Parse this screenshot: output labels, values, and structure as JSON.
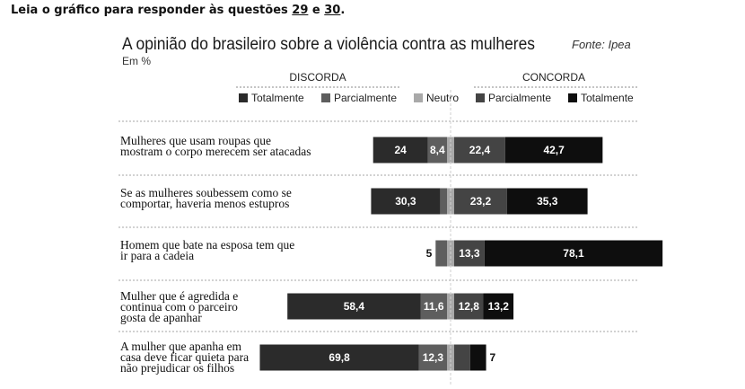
{
  "instruction": {
    "prefix": "Leia o gráfico para responder às questões ",
    "q1": "29",
    "conj": " e ",
    "q2": "30",
    "suffix": "."
  },
  "chart_data": {
    "type": "bar",
    "orientation": "horizontal",
    "stacked": "diverging",
    "title": "A opinião do brasileiro sobre a violência contra as mulheres",
    "source": "Fonte: Ipea",
    "unit": "Em %",
    "group_headers": {
      "disagree": "DISCORDA",
      "agree": "CONCORDA"
    },
    "legend": [
      {
        "label": "Totalmente",
        "color": "#2b2b2b",
        "side": "disagree"
      },
      {
        "label": "Parcialmente",
        "color": "#5e5e5e",
        "side": "disagree"
      },
      {
        "label": "Neutro",
        "color": "#a9a9a9",
        "side": "neutral"
      },
      {
        "label": "Parcialmente",
        "color": "#444444",
        "side": "agree"
      },
      {
        "label": "Totalmente",
        "color": "#0e0e0e",
        "side": "agree"
      }
    ],
    "categories": [
      "Mulheres que usam roupas que mostram o corpo merecem ser atacadas",
      "Se as mulheres soubessem como se comportar, haveria menos estupros",
      "Homem que bate na esposa tem que ir para a cadeia",
      "Mulher que é agredida e continua com o parceiro gosta de apanhar",
      "A mulher que apanha em casa deve ficar quieta para não prejudicar os filhos"
    ],
    "category_lines": [
      [
        "Mulheres que usam roupas que",
        "mostram o corpo merecem ser atacadas"
      ],
      [
        "Se as mulheres soubessem como se",
        "comportar, haveria menos estupros"
      ],
      [
        "Homem que bate na esposa tem que",
        "ir para a cadeia"
      ],
      [
        "Mulher que é agredida e",
        "continua com o parceiro",
        "gosta de apanhar"
      ],
      [
        "A mulher que apanha em",
        "casa deve ficar quieta para",
        "não prejudicar os filhos"
      ]
    ],
    "series": [
      {
        "name": "Discorda totalmente",
        "values": [
          24,
          30.3,
          null,
          58.4,
          69.8
        ],
        "labels": [
          "24",
          "30,3",
          "",
          "58,4",
          "69,8"
        ]
      },
      {
        "name": "Discorda parcialmente",
        "values": [
          8.4,
          3,
          5,
          11.6,
          12.3
        ],
        "labels": [
          "8,4",
          "",
          "5",
          "11,6",
          "12,3"
        ]
      },
      {
        "name": "Neutro",
        "values": [
          1.5,
          1.5,
          1.5,
          1.5,
          1.5
        ]
      },
      {
        "name": "Concorda parcialmente",
        "values": [
          22.4,
          23.2,
          13.3,
          12.8,
          7
        ],
        "labels": [
          "22,4",
          "23,2",
          "13,3",
          "12,8",
          ""
        ]
      },
      {
        "name": "Concorda totalmente",
        "values": [
          42.7,
          35.3,
          78.1,
          13.2,
          7
        ],
        "labels": [
          "42,7",
          "35,3",
          "78,1",
          "13,2",
          "7"
        ]
      }
    ]
  }
}
